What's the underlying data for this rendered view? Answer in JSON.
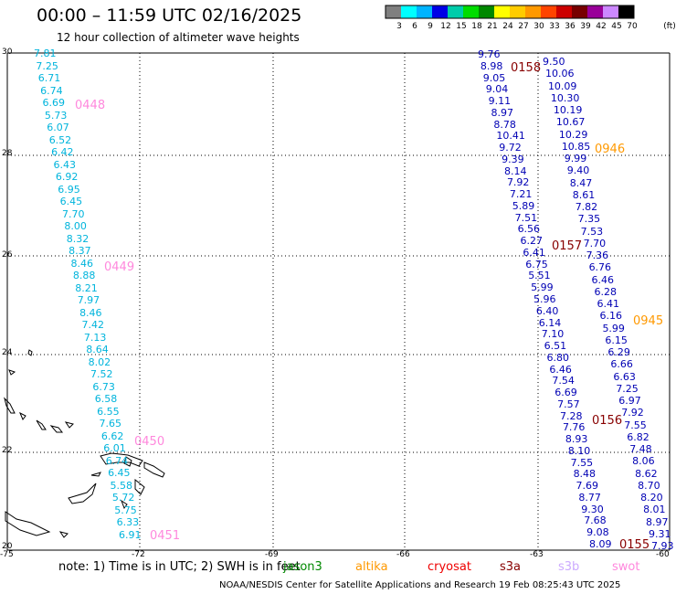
{
  "title": "00:00 – 11:59 UTC 02/16/2025",
  "subtitle": "12 hour collection of altimeter wave heights",
  "colorscale": {
    "unit": "(ft)",
    "labels": [
      "3",
      "6",
      "9",
      "12",
      "15",
      "18",
      "21",
      "24",
      "27",
      "30",
      "33",
      "36",
      "39",
      "42",
      "45",
      "70"
    ],
    "colors": [
      "#7f7f7f",
      "#00ffff",
      "#00b4ff",
      "#0000e6",
      "#00ccaa",
      "#00dd00",
      "#008800",
      "#ffff00",
      "#ffcc00",
      "#ff9900",
      "#ff4400",
      "#cc0000",
      "#770000",
      "#990099",
      "#cc88ff",
      "#000000"
    ]
  },
  "map": {
    "lat_labels": [
      "30",
      "28",
      "26",
      "24",
      "22",
      "20"
    ],
    "lon_labels": [
      "-75",
      "-72",
      "-69",
      "-66",
      "-63",
      "-60"
    ]
  },
  "tracks": [
    {
      "color": "#00b4dc",
      "values": [
        "7.81",
        "7.25",
        "6.71",
        "6.74",
        "6.69",
        "5.73",
        "6.07",
        "6.52",
        "6.42",
        "6.43",
        "6.92",
        "6.95",
        "6.45",
        "7.70",
        "8.00",
        "8.32",
        "8.37",
        "8.46",
        "8.88",
        "8.21",
        "7.97",
        "8.46",
        "7.42",
        "7.13",
        "8.64",
        "8.02",
        "7.52",
        "6.73",
        "6.58",
        "6.55",
        "7.65",
        "6.62",
        "6.01",
        "6.74",
        "6.45",
        "5.58",
        "5.72",
        "5.75",
        "6.33",
        "6.91"
      ]
    },
    {
      "color": "#0000b4",
      "values": [
        "9.76",
        "8.98",
        "9.05",
        "9.04",
        "9.11",
        "8.97",
        "8.78",
        "10.41",
        "9.72",
        "9.39",
        "8.14",
        "7.92",
        "7.21",
        "5.89",
        "7.51",
        "6.56",
        "6.27",
        "6.41",
        "6.75",
        "5.51",
        "5.99",
        "5.96",
        "6.40",
        "6.14",
        "7.10",
        "6.51",
        "6.80",
        "6.46",
        "7.54",
        "6.69",
        "7.57",
        "7.28",
        "7.76",
        "8.93",
        "8.10",
        "7.55",
        "8.48",
        "7.69",
        "8.77",
        "9.30",
        "7.68",
        "9.08",
        "8.09"
      ]
    },
    {
      "color": "#0000b4",
      "values": [
        "9.50",
        "10.06",
        "10.09",
        "10.30",
        "10.19",
        "10.67",
        "10.29",
        "10.85",
        "9.99",
        "9.40",
        "8.47",
        "8.61",
        "7.82",
        "7.35",
        "7.53",
        "7.70",
        "7.36",
        "6.76",
        "6.46",
        "6.28",
        "6.41",
        "6.16",
        "5.99",
        "6.15",
        "6.29",
        "6.66",
        "6.63",
        "7.25",
        "6.97",
        "7.92",
        "7.55",
        "6.82",
        "7.48",
        "8.06",
        "8.62",
        "8.70",
        "8.20",
        "8.01",
        "8.97",
        "9.31",
        "7.93"
      ]
    }
  ],
  "passes": [
    {
      "label": "0448",
      "color": "#ff88dd"
    },
    {
      "label": "0449",
      "color": "#ff88dd"
    },
    {
      "label": "0450",
      "color": "#ff88dd"
    },
    {
      "label": "0451",
      "color": "#ff88dd"
    },
    {
      "label": "0158",
      "color": "#880000"
    },
    {
      "label": "0157",
      "color": "#880000"
    },
    {
      "label": "0156",
      "color": "#880000"
    },
    {
      "label": "0155",
      "color": "#880000"
    },
    {
      "label": "0946",
      "color": "#ff9900"
    },
    {
      "label": "0945",
      "color": "#ff9900"
    }
  ],
  "note": "note:  1) Time is in UTC; 2) SWH is in feet",
  "satellites": [
    {
      "name": "jason3",
      "color": "#008800"
    },
    {
      "name": "altika",
      "color": "#ff9900"
    },
    {
      "name": "cryosat",
      "color": "#ee0000"
    },
    {
      "name": "s3a",
      "color": "#880000"
    },
    {
      "name": "s3b",
      "color": "#ccaaff"
    },
    {
      "name": "swot",
      "color": "#ff88dd"
    }
  ],
  "footer": "NOAA/NESDIS Center for Satellite Applications and Research    19 Feb 08:25:43 UTC 2025"
}
